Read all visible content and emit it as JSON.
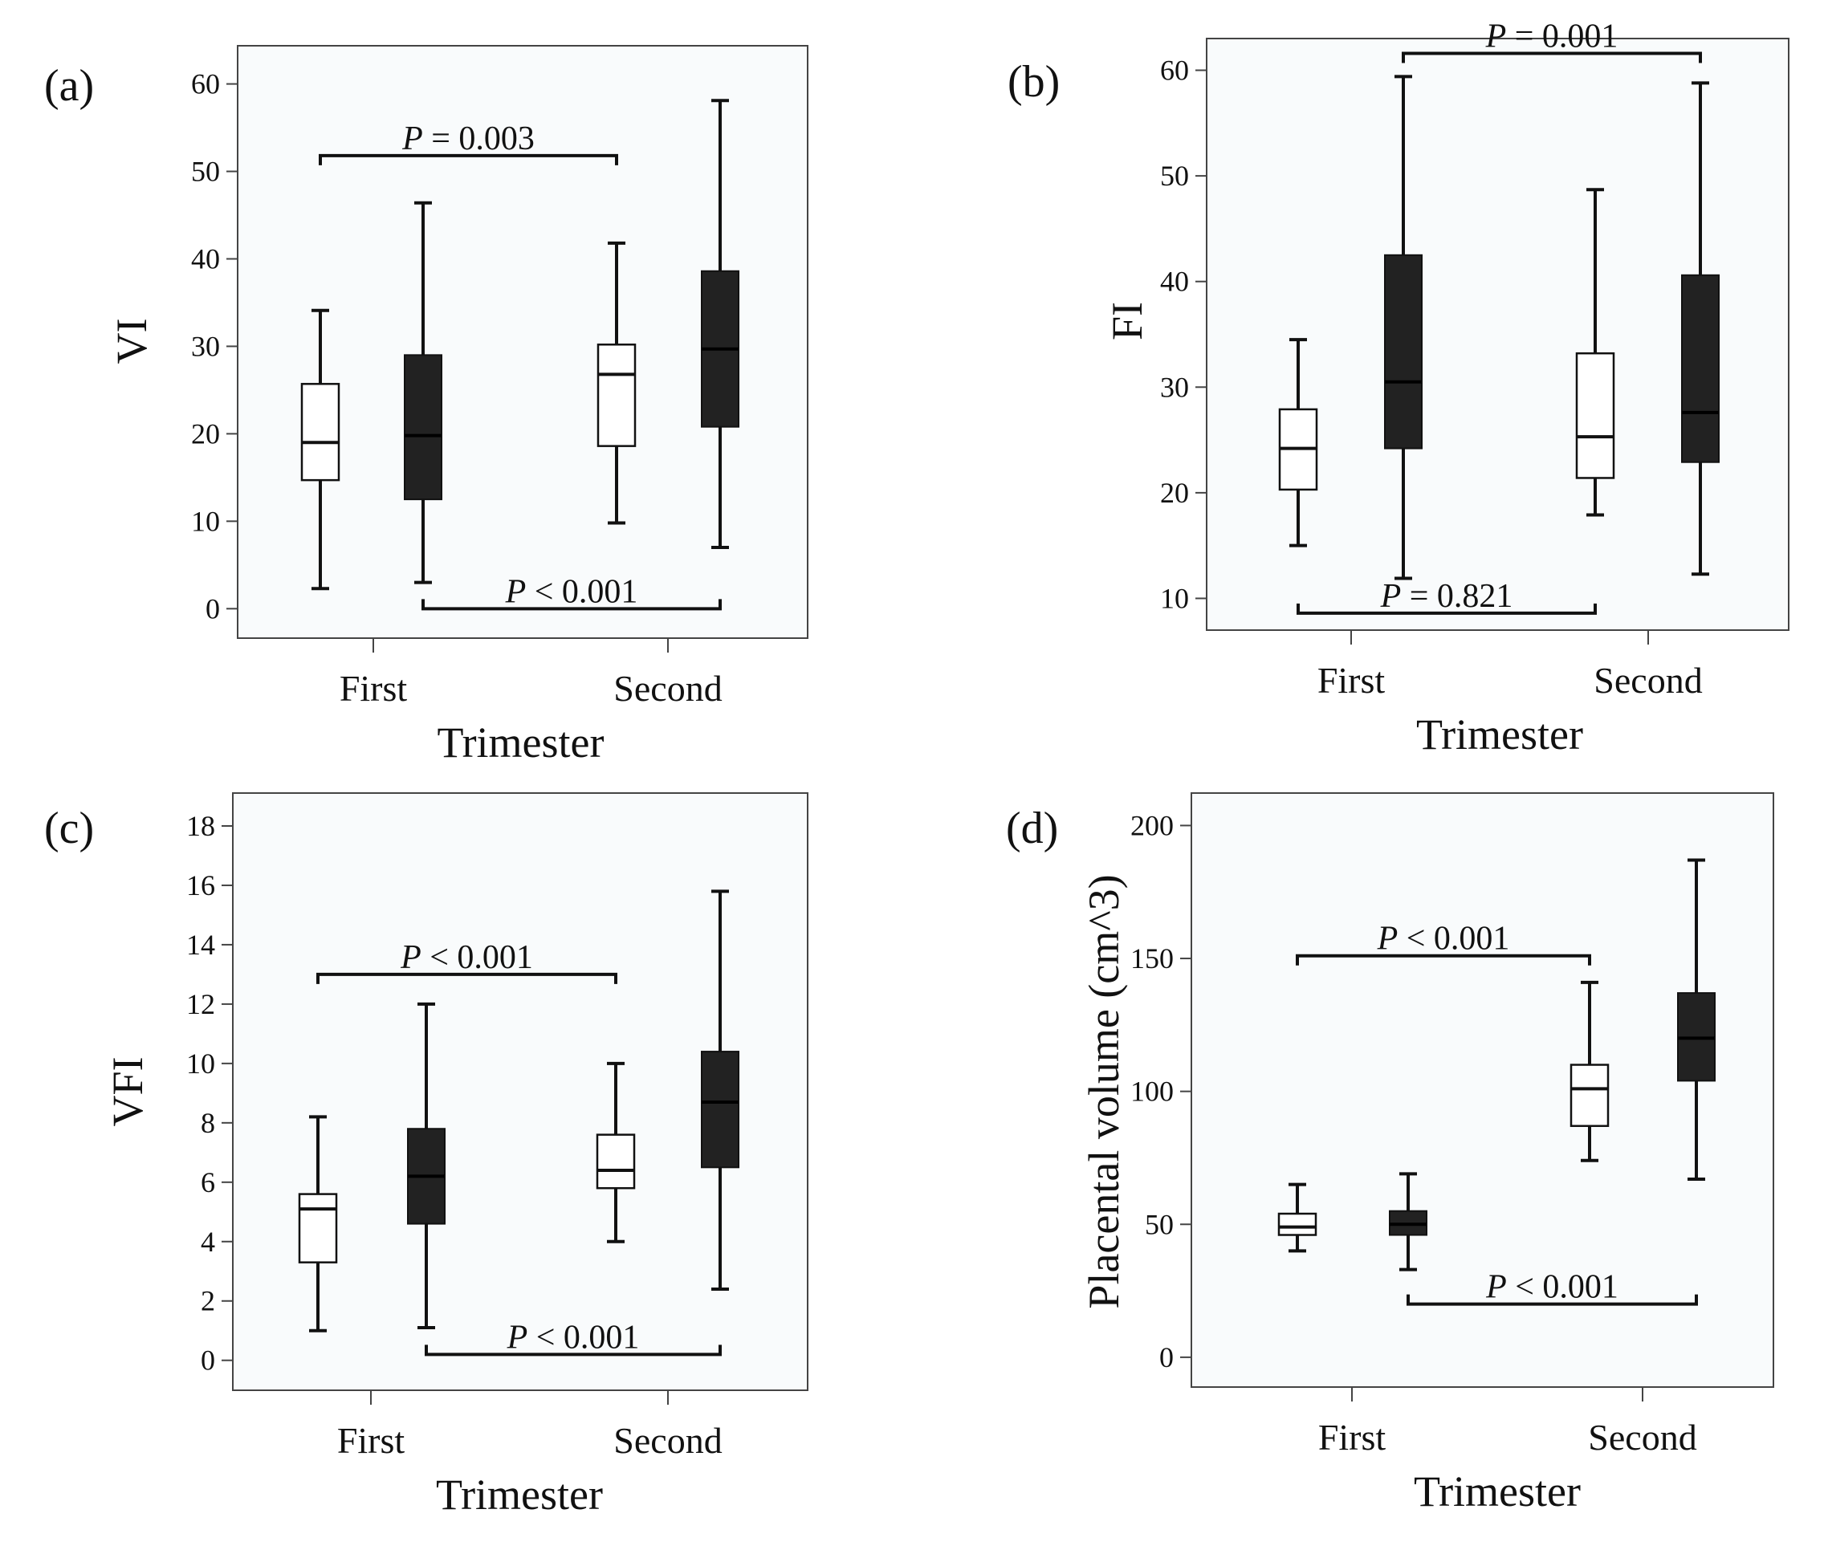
{
  "chart_data": [
    {
      "type": "box",
      "panel_label": "(a)",
      "ylabel": "VI",
      "xlabel": "Trimester",
      "ylim": [
        -3,
        64
      ],
      "yticks": [
        "0",
        "10",
        "20",
        "30",
        "40",
        "50",
        "60"
      ],
      "categories": [
        "First",
        "Second"
      ],
      "series": [
        {
          "name": "white",
          "boxes": [
            {
              "category": "First",
              "min": 2.3,
              "q1": 14.7,
              "median": 19.0,
              "q3": 25.7,
              "max": 34.1
            },
            {
              "category": "Second",
              "min": 9.8,
              "q1": 18.6,
              "median": 26.8,
              "q3": 30.2,
              "max": 41.8
            }
          ]
        },
        {
          "name": "black",
          "boxes": [
            {
              "category": "First",
              "min": 3.0,
              "q1": 12.5,
              "median": 19.8,
              "q3": 29.0,
              "max": 46.4
            },
            {
              "category": "Second",
              "min": 7.0,
              "q1": 20.8,
              "median": 29.7,
              "q3": 38.6,
              "max": 58.1
            }
          ]
        }
      ],
      "pvalues": [
        {
          "p": "P",
          "op": " = ",
          "value": "0.003",
          "from": "First-white",
          "to": "Second-white",
          "level": 51.8,
          "tick": "down"
        },
        {
          "p": "P",
          "op": " < ",
          "value": "0.001",
          "from": "First-black",
          "to": "Second-black",
          "level": 0.0,
          "tick": "up"
        }
      ]
    },
    {
      "type": "box",
      "panel_label": "(b)",
      "ylabel": "FI",
      "xlabel": "Trimester",
      "ylim": [
        7.3,
        62.7
      ],
      "yticks": [
        "10",
        "20",
        "30",
        "40",
        "50",
        "60"
      ],
      "categories": [
        "First",
        "Second"
      ],
      "series": [
        {
          "name": "white",
          "boxes": [
            {
              "category": "First",
              "min": 15.0,
              "q1": 20.3,
              "median": 24.2,
              "q3": 27.9,
              "max": 34.5
            },
            {
              "category": "Second",
              "min": 17.9,
              "q1": 21.4,
              "median": 25.3,
              "q3": 33.2,
              "max": 48.7
            }
          ]
        },
        {
          "name": "black",
          "boxes": [
            {
              "category": "First",
              "min": 11.9,
              "q1": 24.2,
              "median": 30.5,
              "q3": 42.5,
              "max": 59.4
            },
            {
              "category": "Second",
              "min": 12.3,
              "q1": 22.9,
              "median": 27.6,
              "q3": 40.6,
              "max": 58.8
            }
          ]
        }
      ],
      "pvalues": [
        {
          "p": "P",
          "op": " = ",
          "value": "0.001",
          "from": "First-black",
          "to": "Second-black",
          "level": 61.6,
          "tick": "down"
        },
        {
          "p": "P",
          "op": " = ",
          "value": "0.821",
          "from": "First-white",
          "to": "Second-white",
          "level": 8.6,
          "tick": "up"
        }
      ]
    },
    {
      "type": "box",
      "panel_label": "(c)",
      "ylabel": "VFI",
      "xlabel": "Trimester",
      "ylim": [
        -0.9,
        19.0
      ],
      "yticks": [
        "0",
        "2",
        "4",
        "6",
        "8",
        "10",
        "12",
        "14",
        "16",
        "18"
      ],
      "categories": [
        "First",
        "Second"
      ],
      "series": [
        {
          "name": "white",
          "boxes": [
            {
              "category": "First",
              "min": 1.0,
              "q1": 3.3,
              "median": 5.1,
              "q3": 5.6,
              "max": 8.2
            },
            {
              "category": "Second",
              "min": 4.0,
              "q1": 5.8,
              "median": 6.4,
              "q3": 7.6,
              "max": 10.0
            }
          ]
        },
        {
          "name": "black",
          "boxes": [
            {
              "category": "First",
              "min": 1.1,
              "q1": 4.6,
              "median": 6.2,
              "q3": 7.8,
              "max": 12.0
            },
            {
              "category": "Second",
              "min": 2.4,
              "q1": 6.5,
              "median": 8.7,
              "q3": 10.4,
              "max": 15.8
            }
          ]
        }
      ],
      "pvalues": [
        {
          "p": "P",
          "op": " < ",
          "value": "0.001",
          "from": "First-white",
          "to": "Second-white",
          "level": 13.0,
          "tick": "down"
        },
        {
          "p": "P",
          "op": " < ",
          "value": "0.001",
          "from": "First-black",
          "to": "Second-black",
          "level": 0.2,
          "tick": "up"
        }
      ]
    },
    {
      "type": "box",
      "panel_label": "(d)",
      "ylabel": "Placental volume (cm^3)",
      "xlabel": "Trimester",
      "ylim": [
        -10,
        211
      ],
      "yticks": [
        "0",
        "50",
        "100",
        "150",
        "200"
      ],
      "categories": [
        "First",
        "Second"
      ],
      "series": [
        {
          "name": "white",
          "boxes": [
            {
              "category": "First",
              "min": 40,
              "q1": 46,
              "median": 49,
              "q3": 54,
              "max": 65
            },
            {
              "category": "Second",
              "min": 74,
              "q1": 87,
              "median": 101,
              "q3": 110,
              "max": 141
            }
          ]
        },
        {
          "name": "black",
          "boxes": [
            {
              "category": "First",
              "min": 33,
              "q1": 46,
              "median": 50,
              "q3": 55,
              "max": 69
            },
            {
              "category": "Second",
              "min": 67,
              "q1": 104,
              "median": 120,
              "q3": 137,
              "max": 187
            }
          ]
        }
      ],
      "pvalues": [
        {
          "p": "P",
          "op": " < ",
          "value": "0.001",
          "from": "First-white",
          "to": "Second-white",
          "level": 151,
          "tick": "down"
        },
        {
          "p": "P",
          "op": " < ",
          "value": "0.001",
          "from": "First-black",
          "to": "Second-black",
          "level": 20,
          "tick": "up"
        }
      ]
    }
  ],
  "colors": {
    "white_box": "#ffffff",
    "black_box": "#222222",
    "panel_bg": "#f9fbfc",
    "axis": "#444444",
    "ink": "#111111"
  }
}
